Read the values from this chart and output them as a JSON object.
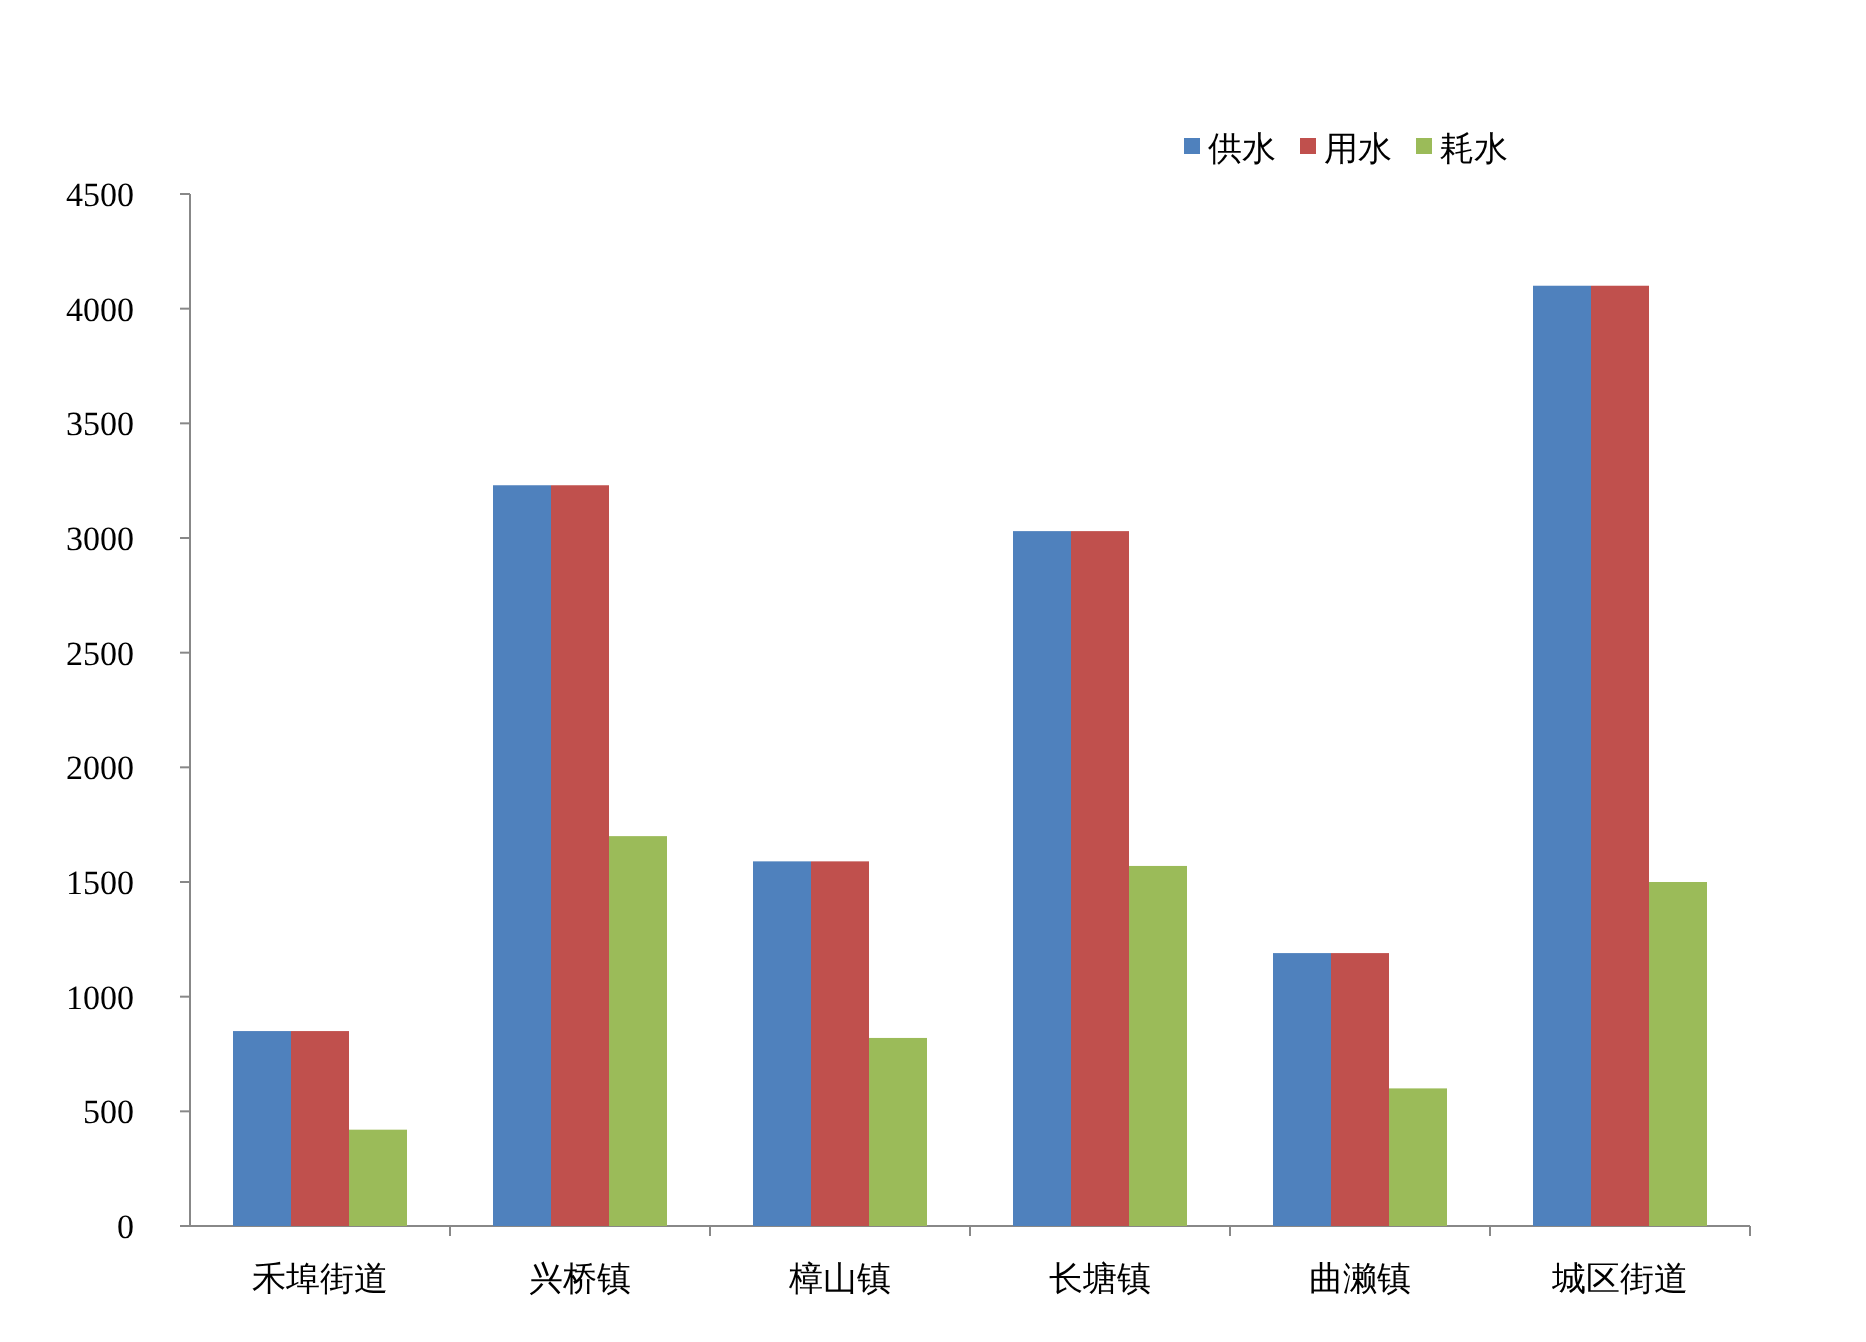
{
  "chart_data": {
    "type": "bar",
    "categories": [
      "禾埠街道",
      "兴桥镇",
      "樟山镇",
      "长塘镇",
      "曲濑镇",
      "城区街道"
    ],
    "series": [
      {
        "name": "供水",
        "color": "#4f81bd",
        "values": [
          850,
          3230,
          1590,
          3030,
          1190,
          4100
        ]
      },
      {
        "name": "用水",
        "color": "#c0504d",
        "values": [
          850,
          3230,
          1590,
          3030,
          1190,
          4100
        ]
      },
      {
        "name": "耗水",
        "color": "#9bbb59",
        "values": [
          420,
          1700,
          820,
          1570,
          600,
          1500
        ]
      }
    ],
    "ylim": [
      0,
      4500
    ],
    "yticks": [
      0,
      500,
      1000,
      1500,
      2000,
      2500,
      3000,
      3500,
      4000,
      4500
    ],
    "legend": "top right"
  }
}
